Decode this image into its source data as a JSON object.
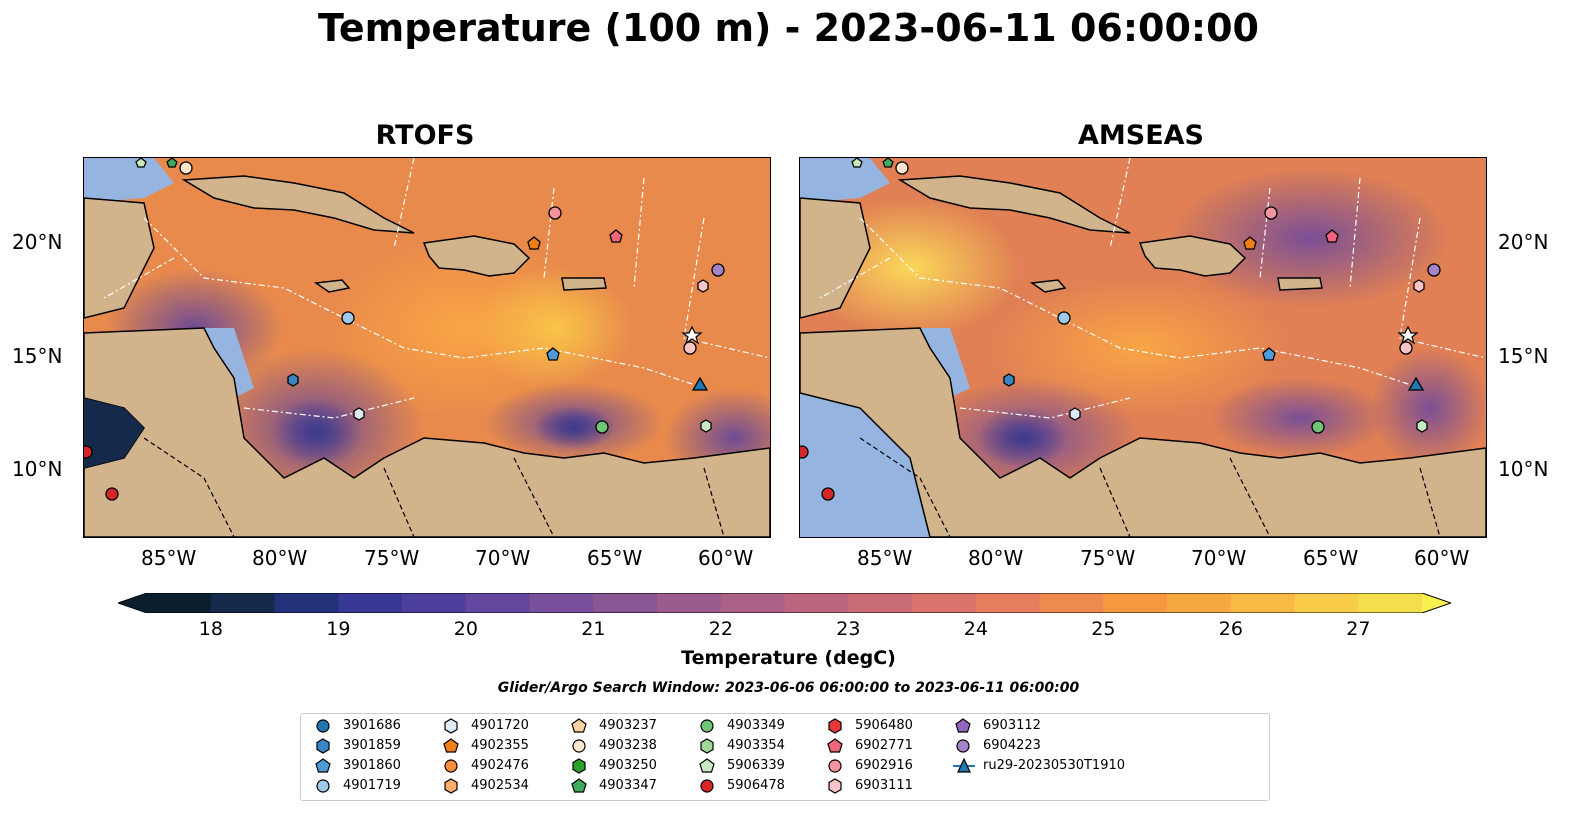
{
  "title": "Temperature (100 m) - 2023-06-11 06:00:00",
  "panels": [
    {
      "title": "RTOFS"
    },
    {
      "title": "AMSEAS"
    }
  ],
  "lon_ticks": [
    "85°W",
    "80°W",
    "75°W",
    "70°W",
    "65°W",
    "60°W"
  ],
  "lat_ticks": [
    "20°N",
    "15°N",
    "10°N"
  ],
  "colorbar": {
    "label": "Temperature (degC)",
    "ticks": [
      "18",
      "19",
      "20",
      "21",
      "22",
      "23",
      "24",
      "25",
      "26",
      "27"
    ],
    "min": 17.5,
    "max": 27.5
  },
  "search_window": "Glider/Argo Search Window: 2023-06-06 06:00:00 to 2023-06-11 06:00:00",
  "legend": [
    {
      "label": "3901686",
      "marker": "circle",
      "color": "#1f77b4"
    },
    {
      "label": "3901859",
      "marker": "hexagon",
      "color": "#3a86c4"
    },
    {
      "label": "3901860",
      "marker": "pentagon",
      "color": "#4f9bd6"
    },
    {
      "label": "4901719",
      "marker": "circle",
      "color": "#9ecae9"
    },
    {
      "label": "4901720",
      "marker": "hexagon",
      "color": "#deebf7"
    },
    {
      "label": "4902355",
      "marker": "pentagon",
      "color": "#f07f17"
    },
    {
      "label": "4902476",
      "marker": "circle",
      "color": "#fd8d3c"
    },
    {
      "label": "4902534",
      "marker": "hexagon",
      "color": "#fdae6b"
    },
    {
      "label": "4903237",
      "marker": "pentagon",
      "color": "#fdd0a2"
    },
    {
      "label": "4903238",
      "marker": "circle",
      "color": "#fee6ce"
    },
    {
      "label": "4903250",
      "marker": "hexagon",
      "color": "#2ca02c"
    },
    {
      "label": "4903347",
      "marker": "pentagon",
      "color": "#41ab5d"
    },
    {
      "label": "4903349",
      "marker": "circle",
      "color": "#74c476"
    },
    {
      "label": "4903354",
      "marker": "hexagon",
      "color": "#a1d99b"
    },
    {
      "label": "5906339",
      "marker": "pentagon",
      "color": "#c7e9c0"
    },
    {
      "label": "5906478",
      "marker": "circle",
      "color": "#d62728"
    },
    {
      "label": "5906480",
      "marker": "hexagon",
      "color": "#e6383a"
    },
    {
      "label": "6902771",
      "marker": "pentagon",
      "color": "#f0657b"
    },
    {
      "label": "6902916",
      "marker": "circle",
      "color": "#f4949f"
    },
    {
      "label": "6903111",
      "marker": "hexagon",
      "color": "#fbc5c8"
    },
    {
      "label": "6903112",
      "marker": "pentagon",
      "color": "#9467bd"
    },
    {
      "label": "6904223",
      "marker": "circle",
      "color": "#a682c9"
    },
    {
      "label": "ru29-20230530T1910",
      "marker": "triangle",
      "color": "#1f77b4"
    }
  ],
  "colors": {
    "land": "#d2b48c",
    "shallow_water": "#95b5e0"
  }
}
